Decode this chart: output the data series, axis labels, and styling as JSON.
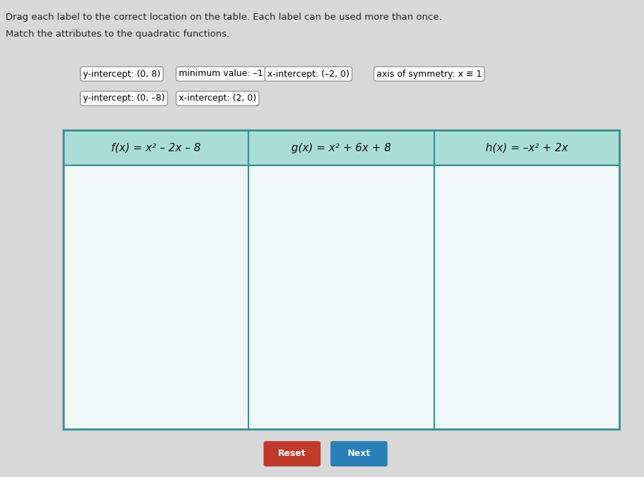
{
  "bg_color": "#d8d8d8",
  "top_text": "Drag each label to the correct location on the table. Each label can be used more than once.",
  "sub_text": "Match the attributes to the quadratic functions.",
  "labels_row1": [
    "y-intercept: (0, 8)",
    "minimum value: –1",
    "x-intercept: (–2, 0)",
    "axis of symmetry: x ≡ 1"
  ],
  "labels_row2": [
    "y-intercept: (0, –8)",
    "x-intercept: (2, 0)"
  ],
  "table_headers": [
    "f(x) = x² – 2x – 8",
    "g(x) = x² + 6x + 8",
    "h(x) = –x² + 2x"
  ],
  "table_header_bg": "#aaddd8",
  "table_border_color": "#3a9090",
  "table_cell_bg": "#f0f8f8",
  "label_box_bg": "#ffffff",
  "label_box_border": "#999999",
  "reset_btn_color": "#c0392b",
  "next_btn_color": "#2980b9",
  "btn_text_color": "#ffffff",
  "top_text_color": "#222222",
  "header_text_color": "#111111",
  "font_size_top": 9.5,
  "font_size_sub": 9.5,
  "font_size_label": 9,
  "font_size_header": 11,
  "font_size_btn": 9
}
